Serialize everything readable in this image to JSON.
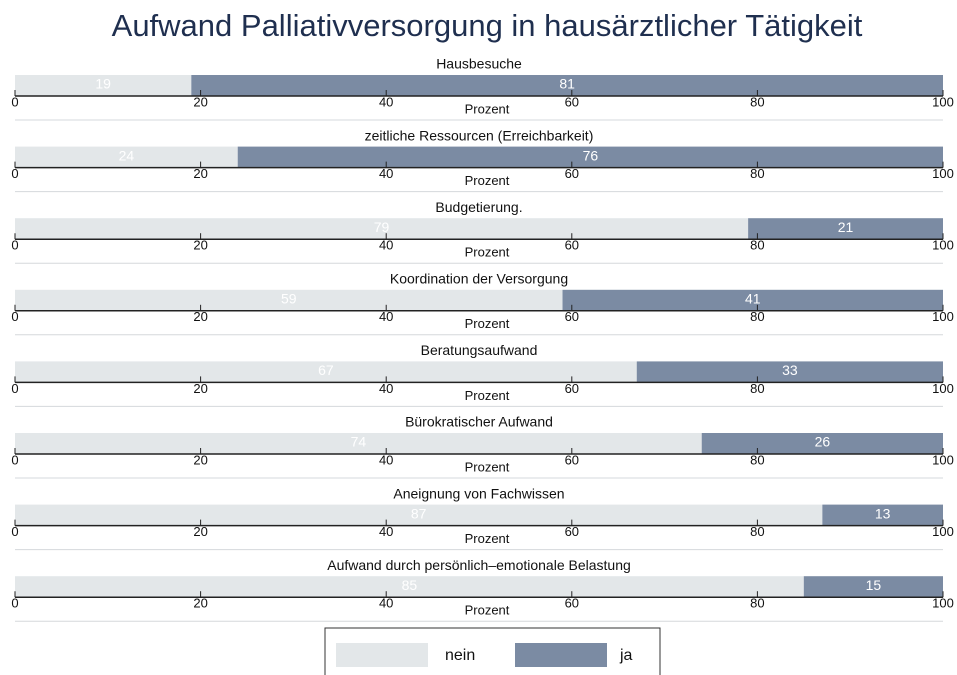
{
  "chart_data": {
    "type": "stacked-hbar-panels",
    "title": "Aufwand Palliativversorgung in hausärztlicher Tätigkeit",
    "categories": [
      "Hausbesuche",
      "zeitliche Ressourcen (Erreichbarkeit)",
      "Budgetierung.",
      "Koordination der Versorgung",
      "Beratungsaufwand",
      "Bürokratischer Aufwand",
      "Aneignung von Fachwissen",
      "Aufwand durch persönlich–emotionale Belastung"
    ],
    "series": [
      {
        "name": "nein",
        "color": "#e3e7e9",
        "values": [
          19,
          24,
          79,
          59,
          67,
          74,
          87,
          85
        ]
      },
      {
        "name": "ja",
        "color": "#7b8ba3",
        "values": [
          81,
          76,
          21,
          41,
          33,
          26,
          13,
          15
        ]
      }
    ],
    "xlabel": "Prozent",
    "xlim": [
      0,
      100
    ],
    "xticks": [
      0,
      20,
      40,
      60,
      80,
      100
    ]
  }
}
